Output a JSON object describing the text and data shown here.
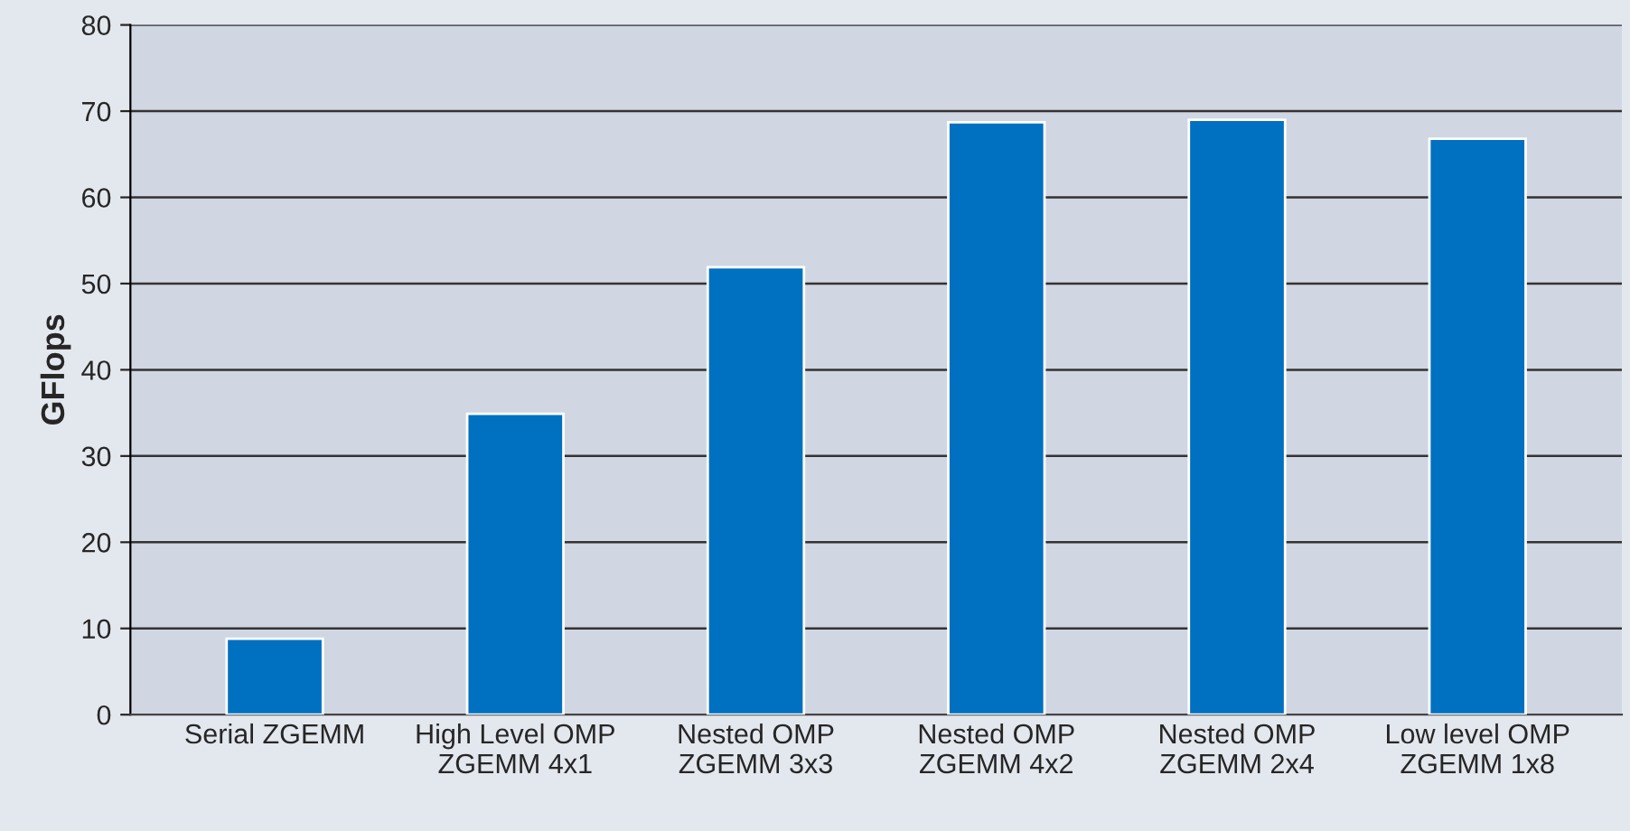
{
  "chart_data": {
    "type": "bar",
    "ylabel": "GFlops",
    "categories": [
      "Serial ZGEMM",
      "High Level OMP\nZGEMM 4x1",
      "Nested OMP\nZGEMM 3x3",
      "Nested OMP\nZGEMM 4x2",
      "Nested OMP\nZGEMM 2x4",
      "Low level OMP\nZGEMM 1x8"
    ],
    "values": [
      8.8,
      34.9,
      51.9,
      68.7,
      69.0,
      66.8
    ],
    "color": "#0070c0",
    "ylim": [
      0,
      80
    ],
    "yticks": [
      0,
      10,
      20,
      30,
      40,
      50,
      60,
      70,
      80
    ],
    "grid": "y",
    "legend": false
  }
}
